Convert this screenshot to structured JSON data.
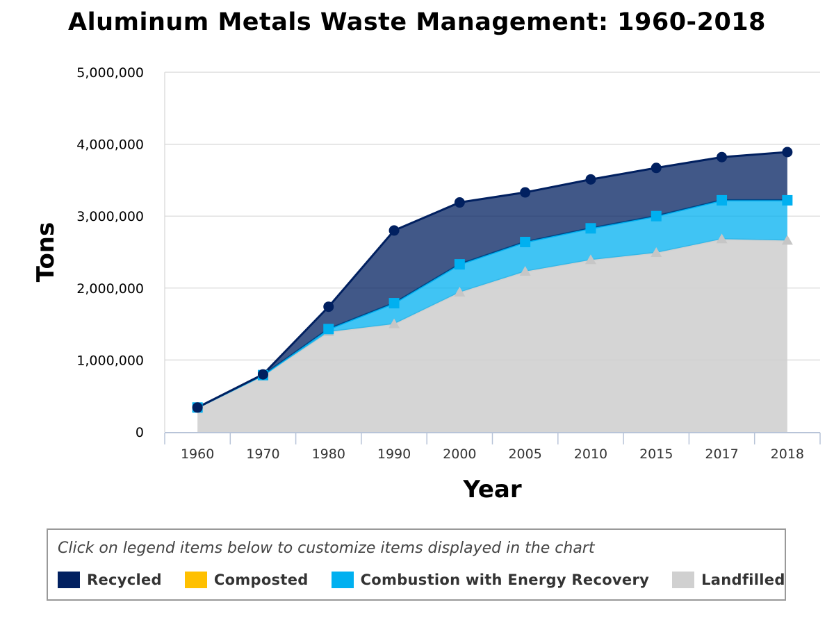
{
  "chart_data": {
    "type": "area",
    "stacked": true,
    "title": "Aluminum Metals Waste Management: 1960-2018",
    "xlabel": "Year",
    "ylabel": "Tons",
    "categories": [
      "1960",
      "1970",
      "1980",
      "1990",
      "2000",
      "2005",
      "2010",
      "2015",
      "2017",
      "2018"
    ],
    "ylim": [
      0,
      5000000
    ],
    "yticks": [
      0,
      1000000,
      2000000,
      3000000,
      4000000,
      5000000
    ],
    "ytick_labels": [
      "0",
      "1,000,000",
      "2,000,000",
      "3,000,000",
      "4,000,000",
      "5,000,000"
    ],
    "grid": true,
    "legend_position": "bottom",
    "legend_hint": "Click on legend items below to customize items displayed in the chart",
    "series": [
      {
        "name": "Recycled",
        "color": "#012060",
        "marker": "circle",
        "values": [
          0,
          10000,
          310000,
          1010000,
          860000,
          690000,
          680000,
          670000,
          600000,
          670000
        ]
      },
      {
        "name": "Composted",
        "color": "#FFC000",
        "marker": "none",
        "values": [
          0,
          0,
          0,
          0,
          0,
          0,
          0,
          0,
          0,
          0
        ]
      },
      {
        "name": "Combustion with Energy Recovery",
        "color": "#00B0F0",
        "marker": "square",
        "values": [
          0,
          10000,
          40000,
          290000,
          390000,
          410000,
          440000,
          510000,
          540000,
          560000
        ]
      },
      {
        "name": "Landfilled",
        "color": "#D0D0D0",
        "marker": "triangle",
        "values": [
          340000,
          780000,
          1390000,
          1500000,
          1940000,
          2230000,
          2390000,
          2490000,
          2680000,
          2660000
        ]
      }
    ]
  }
}
